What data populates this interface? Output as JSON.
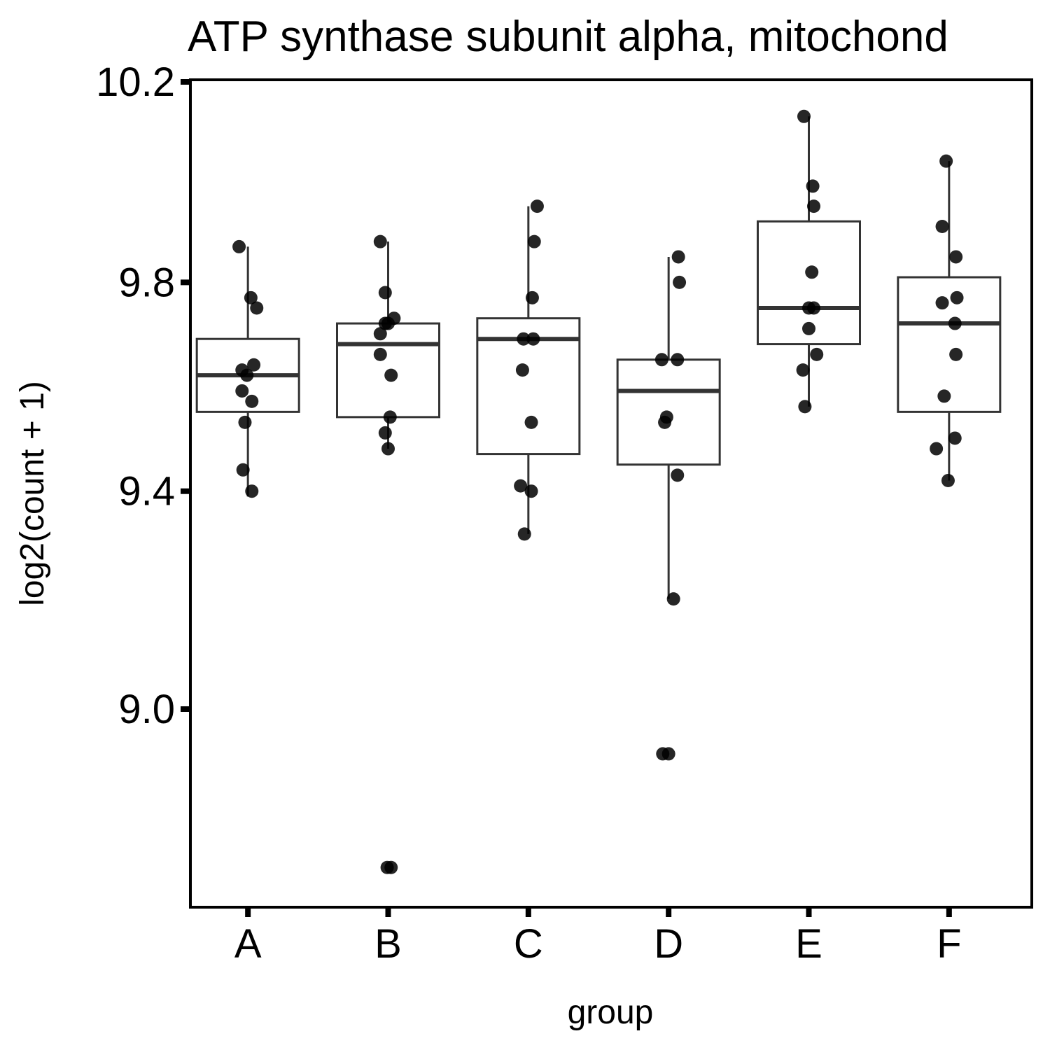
{
  "chart_data": {
    "type": "boxplot",
    "title": "ATP synthase subunit alpha, mitochond",
    "xlabel": "group",
    "ylabel": "log2(count + 1)",
    "ylim": [
      8.63,
      10.2
    ],
    "yticks": [
      9.0,
      9.4,
      9.8,
      10.2
    ],
    "y_tick_labels": [
      "9.0",
      "9.4",
      "9.8",
      "10.2"
    ],
    "y_scale": "log",
    "grid": false,
    "categories": [
      "A",
      "B",
      "C",
      "D",
      "E",
      "F"
    ],
    "boxes": [
      {
        "q1": 9.55,
        "median": 9.62,
        "q3": 9.69,
        "whisker_low": 9.39,
        "whisker_high": 9.87
      },
      {
        "q1": 9.54,
        "median": 9.68,
        "q3": 9.72,
        "whisker_low": 9.48,
        "whisker_high": 9.88
      },
      {
        "q1": 9.47,
        "median": 9.69,
        "q3": 9.73,
        "whisker_low": 9.32,
        "whisker_high": 9.95
      },
      {
        "q1": 9.45,
        "median": 9.59,
        "q3": 9.65,
        "whisker_low": 9.2,
        "whisker_high": 9.85
      },
      {
        "q1": 9.68,
        "median": 9.75,
        "q3": 9.92,
        "whisker_low": 9.56,
        "whisker_high": 10.13
      },
      {
        "q1": 9.55,
        "median": 9.72,
        "q3": 9.81,
        "whisker_low": 9.42,
        "whisker_high": 10.04
      }
    ],
    "points": [
      [
        [
          -0.09,
          9.87
        ],
        [
          0.03,
          9.77
        ],
        [
          0.09,
          9.75
        ],
        [
          -0.06,
          9.63
        ],
        [
          -0.01,
          9.62
        ],
        [
          0.06,
          9.64
        ],
        [
          -0.06,
          9.59
        ],
        [
          0.04,
          9.57
        ],
        [
          -0.03,
          9.53
        ],
        [
          -0.05,
          9.44
        ],
        [
          0.04,
          9.4
        ]
      ],
      [
        [
          -0.08,
          9.88
        ],
        [
          -0.03,
          9.78
        ],
        [
          0.06,
          9.73
        ],
        [
          0.0,
          9.72
        ],
        [
          -0.03,
          9.72
        ],
        [
          -0.08,
          9.7
        ],
        [
          -0.08,
          9.66
        ],
        [
          0.03,
          9.62
        ],
        [
          0.02,
          9.54
        ],
        [
          -0.03,
          9.51
        ],
        [
          0.0,
          9.48
        ],
        [
          -0.01,
          8.72
        ],
        [
          0.03,
          8.72
        ]
      ],
      [
        [
          0.09,
          9.95
        ],
        [
          0.06,
          9.88
        ],
        [
          0.04,
          9.77
        ],
        [
          -0.05,
          9.69
        ],
        [
          0.05,
          9.69
        ],
        [
          -0.06,
          9.63
        ],
        [
          0.03,
          9.53
        ],
        [
          -0.08,
          9.41
        ],
        [
          0.03,
          9.4
        ],
        [
          -0.04,
          9.32
        ]
      ],
      [
        [
          0.1,
          9.85
        ],
        [
          0.11,
          9.8
        ],
        [
          -0.07,
          9.65
        ],
        [
          0.09,
          9.65
        ],
        [
          -0.02,
          9.54
        ],
        [
          -0.04,
          9.53
        ],
        [
          0.09,
          9.43
        ],
        [
          0.05,
          9.2
        ],
        [
          -0.06,
          8.92
        ],
        [
          0.0,
          8.92
        ]
      ],
      [
        [
          -0.05,
          10.13
        ],
        [
          0.04,
          9.99
        ],
        [
          0.05,
          9.95
        ],
        [
          0.03,
          9.82
        ],
        [
          0.0,
          9.75
        ],
        [
          0.05,
          9.75
        ],
        [
          0.0,
          9.71
        ],
        [
          0.08,
          9.66
        ],
        [
          -0.06,
          9.63
        ],
        [
          -0.04,
          9.56
        ]
      ],
      [
        [
          -0.03,
          10.04
        ],
        [
          -0.07,
          9.91
        ],
        [
          0.07,
          9.85
        ],
        [
          0.08,
          9.77
        ],
        [
          -0.07,
          9.76
        ],
        [
          0.06,
          9.72
        ],
        [
          0.07,
          9.66
        ],
        [
          -0.05,
          9.58
        ],
        [
          0.06,
          9.5
        ],
        [
          -0.13,
          9.48
        ],
        [
          -0.01,
          9.42
        ]
      ]
    ]
  }
}
